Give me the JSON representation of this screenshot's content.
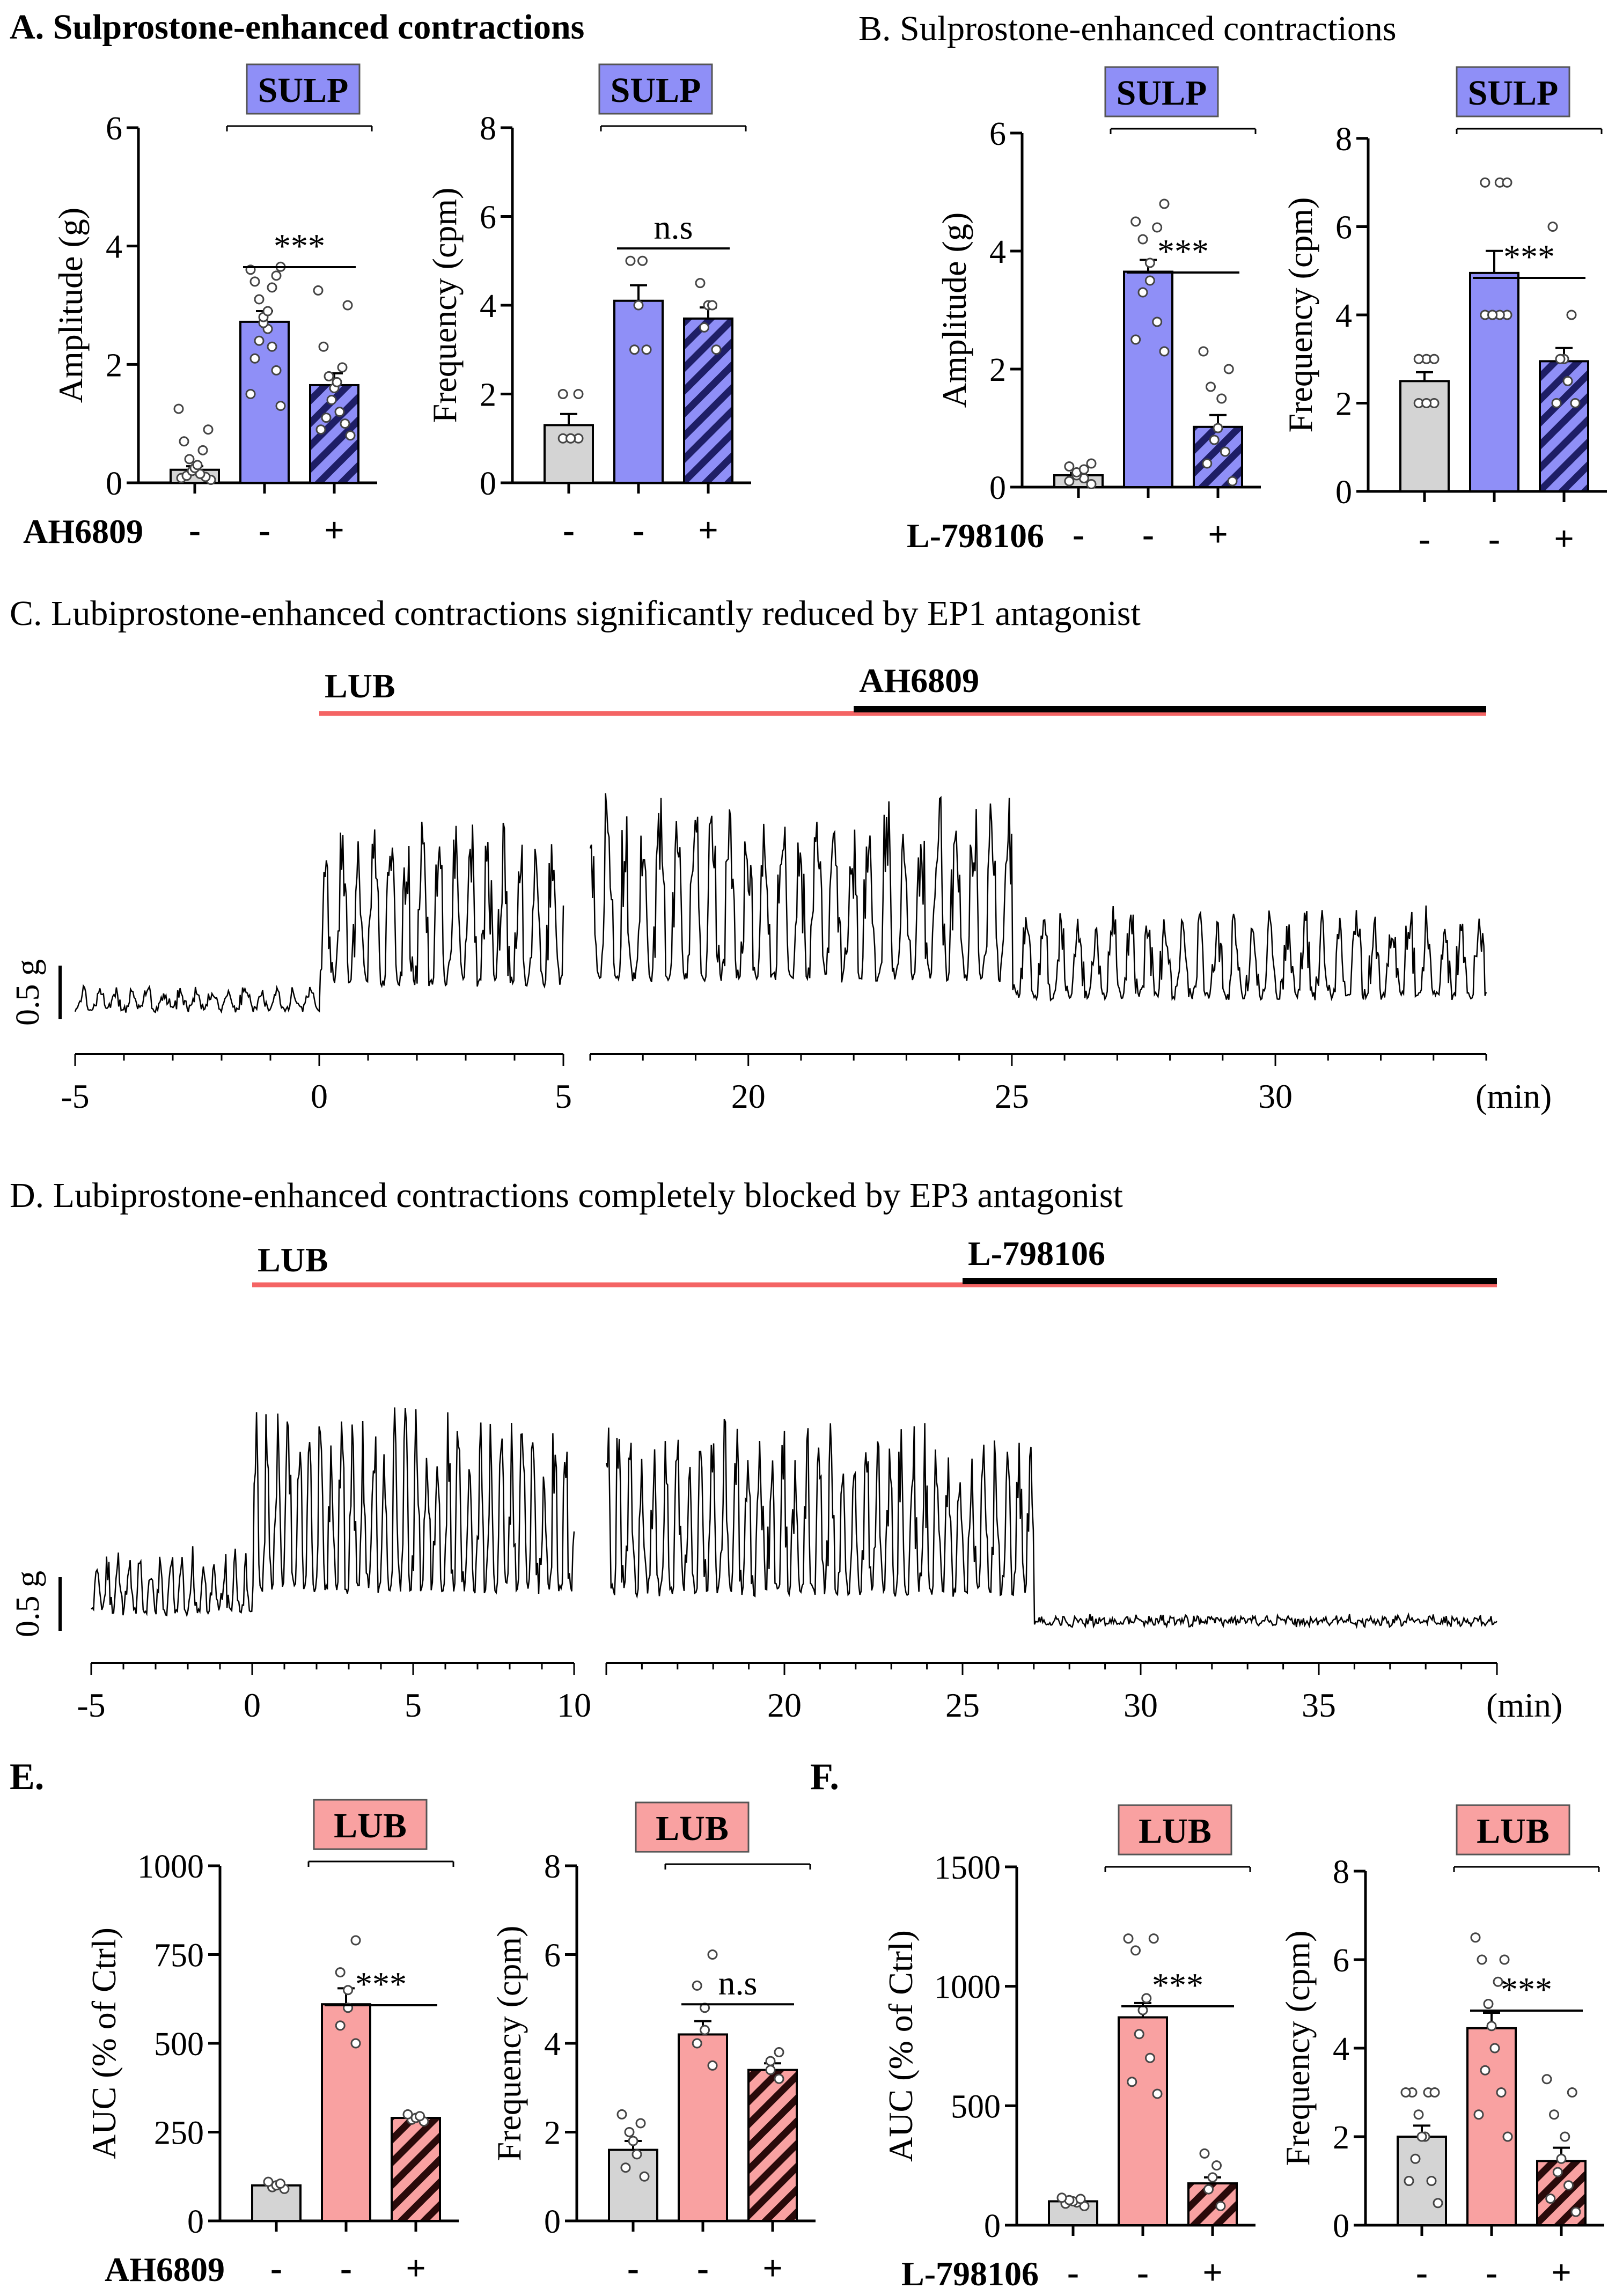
{
  "colors": {
    "control": "#d4d4d4",
    "sulp": "#8f8ff7",
    "sulp_dark": "#3a3a9a",
    "lub": "#f9a1a1",
    "lub_dark": "#e2565c",
    "lub_line": "#f46464",
    "trace": "#000000",
    "axis": "#000000"
  },
  "panel_titles": {
    "A": "A. Sulprostone-enhanced contractions",
    "B": "B. Sulprostone-enhanced contractions",
    "C": "C. Lubiprostone-enhanced contractions significantly reduced by EP1 antagonist",
    "D": "D. Lubiprostone-enhanced contractions completely blocked by EP3 antagonist",
    "E": "E.",
    "F": "F."
  },
  "chart_data": [
    {
      "id": "A1",
      "type": "bar",
      "ylabel": "Amplitude (g)",
      "ylim": [
        0,
        6
      ],
      "yticks": [
        "0",
        "2",
        "4",
        "6"
      ],
      "treatment": "SULP",
      "treatment_box": "sulp",
      "significance": "***",
      "drug_label": "AH6809",
      "drug_signs": [
        "-",
        "-",
        "+"
      ],
      "bars": [
        {
          "mean": 0.22,
          "sem": 0.06,
          "style": "control",
          "points": [
            0.05,
            0.08,
            0.1,
            0.12,
            0.15,
            0.2,
            0.25,
            0.3,
            0.4,
            0.55,
            0.7,
            0.9,
            1.25
          ]
        },
        {
          "mean": 2.72,
          "sem": 0.18,
          "style": "treat",
          "points": [
            1.3,
            1.5,
            1.9,
            2.1,
            2.3,
            2.4,
            2.6,
            2.7,
            2.8,
            2.9,
            3.1,
            3.3,
            3.4,
            3.5,
            3.6,
            3.65
          ]
        },
        {
          "mean": 1.65,
          "sem": 0.2,
          "style": "hatch",
          "points": [
            0.8,
            0.9,
            1.0,
            1.1,
            1.2,
            1.4,
            1.6,
            1.7,
            1.8,
            1.95,
            2.3,
            3.0,
            3.25
          ]
        }
      ]
    },
    {
      "id": "A2",
      "type": "bar",
      "ylabel": "Frequency (cpm)",
      "ylim": [
        0,
        8
      ],
      "yticks": [
        "0",
        "2",
        "4",
        "6",
        "8"
      ],
      "treatment": "SULP",
      "treatment_box": "sulp",
      "significance": "n.s",
      "drug_label": "",
      "drug_signs": [
        "-",
        "-",
        "+"
      ],
      "bars": [
        {
          "mean": 1.3,
          "sem": 0.25,
          "style": "control",
          "points": [
            1.0,
            1.0,
            1.0,
            1.0,
            2.0,
            2.0
          ]
        },
        {
          "mean": 4.1,
          "sem": 0.35,
          "style": "treat",
          "points": [
            3.0,
            3.0,
            4.0,
            5.0,
            5.0
          ]
        },
        {
          "mean": 3.7,
          "sem": 0.25,
          "style": "hatch",
          "points": [
            3.0,
            3.5,
            4.0,
            4.0,
            4.5
          ]
        }
      ]
    },
    {
      "id": "B1",
      "type": "bar",
      "ylabel": "Amplitude (g)",
      "ylim": [
        0,
        6
      ],
      "yticks": [
        "0",
        "2",
        "4",
        "6"
      ],
      "treatment": "SULP",
      "treatment_box": "sulp",
      "significance": "***",
      "drug_label": "L-798106",
      "drug_signs": [
        "-",
        "-",
        "+"
      ],
      "bars": [
        {
          "mean": 0.2,
          "sem": 0.04,
          "style": "control",
          "points": [
            0.05,
            0.1,
            0.15,
            0.2,
            0.25,
            0.3,
            0.35,
            0.4
          ]
        },
        {
          "mean": 3.65,
          "sem": 0.2,
          "style": "treat",
          "points": [
            2.3,
            2.5,
            2.8,
            3.3,
            3.5,
            3.8,
            4.2,
            4.4,
            4.5,
            4.8
          ]
        },
        {
          "mean": 1.02,
          "sem": 0.2,
          "style": "hatch",
          "points": [
            0.1,
            0.4,
            0.6,
            0.8,
            1.0,
            1.5,
            1.7,
            2.0,
            2.3
          ]
        }
      ]
    },
    {
      "id": "B2",
      "type": "bar",
      "ylabel": "Frequency (cpm)",
      "ylim": [
        0,
        8
      ],
      "yticks": [
        "0",
        "2",
        "4",
        "6",
        "8"
      ],
      "treatment": "SULP",
      "treatment_box": "sulp",
      "significance": "***",
      "drug_label": "",
      "drug_signs": [
        "-",
        "-",
        "+"
      ],
      "bars": [
        {
          "mean": 2.5,
          "sem": 0.2,
          "style": "control",
          "points": [
            2.0,
            2.0,
            2.0,
            3.0,
            3.0,
            3.0
          ]
        },
        {
          "mean": 4.95,
          "sem": 0.5,
          "style": "treat",
          "points": [
            4.0,
            4.0,
            4.0,
            4.0,
            4.0,
            7.0,
            7.0,
            7.0
          ]
        },
        {
          "mean": 2.95,
          "sem": 0.3,
          "style": "hatch",
          "points": [
            2.0,
            2.0,
            2.5,
            3.0,
            3.0,
            4.0,
            6.0
          ]
        }
      ]
    },
    {
      "id": "E1",
      "type": "bar",
      "ylabel": "AUC (% of Ctrl)",
      "ylim": [
        0,
        1000
      ],
      "yticks": [
        "0",
        "250",
        "500",
        "750",
        "1000"
      ],
      "treatment": "LUB",
      "treatment_box": "lub",
      "significance": "***",
      "drug_label": "AH6809",
      "drug_signs": [
        "-",
        "-",
        "+"
      ],
      "bars": [
        {
          "mean": 100,
          "sem": 5,
          "style": "control",
          "points": [
            90,
            95,
            100,
            105,
            110
          ]
        },
        {
          "mean": 610,
          "sem": 45,
          "style": "treat",
          "points": [
            500,
            550,
            600,
            650,
            700,
            790
          ]
        },
        {
          "mean": 290,
          "sem": 8,
          "style": "hatch",
          "points": [
            280,
            285,
            290,
            295,
            300
          ]
        }
      ]
    },
    {
      "id": "E2",
      "type": "bar",
      "ylabel": "Frequency (cpm)",
      "ylim": [
        0,
        8
      ],
      "yticks": [
        "0",
        "2",
        "4",
        "6",
        "8"
      ],
      "treatment": "LUB",
      "treatment_box": "lub",
      "significance": "n.s",
      "drug_label": "",
      "drug_signs": [
        "-",
        "-",
        "+"
      ],
      "bars": [
        {
          "mean": 1.6,
          "sem": 0.2,
          "style": "control",
          "points": [
            1.0,
            1.2,
            1.5,
            1.8,
            2.0,
            2.2,
            2.4
          ]
        },
        {
          "mean": 4.2,
          "sem": 0.3,
          "style": "treat",
          "points": [
            3.5,
            4.0,
            4.3,
            4.8,
            5.3,
            6.0
          ]
        },
        {
          "mean": 3.4,
          "sem": 0.15,
          "style": "hatch",
          "points": [
            3.2,
            3.4,
            3.6,
            3.8
          ]
        }
      ]
    },
    {
      "id": "F1",
      "type": "bar",
      "ylabel": "AUC (% of Ctrl)",
      "ylim": [
        0,
        1500
      ],
      "yticks": [
        "0",
        "500",
        "1000",
        "1500"
      ],
      "treatment": "LUB",
      "treatment_box": "lub",
      "significance": "***",
      "drug_label": "L-798106",
      "drug_signs": [
        "-",
        "-",
        "+"
      ],
      "bars": [
        {
          "mean": 100,
          "sem": 8,
          "style": "control",
          "points": [
            80,
            90,
            95,
            100,
            105,
            110,
            115
          ]
        },
        {
          "mean": 870,
          "sem": 60,
          "style": "treat",
          "points": [
            550,
            600,
            700,
            800,
            900,
            950,
            1150,
            1200,
            1200
          ]
        },
        {
          "mean": 175,
          "sem": 25,
          "style": "hatch",
          "points": [
            80,
            150,
            200,
            250,
            300
          ]
        }
      ]
    },
    {
      "id": "F2",
      "type": "bar",
      "ylabel": "Frequency (cpm)",
      "ylim": [
        0,
        8
      ],
      "yticks": [
        "0",
        "2",
        "4",
        "6",
        "8"
      ],
      "treatment": "LUB",
      "treatment_box": "lub",
      "significance": "***",
      "drug_label": "",
      "drug_signs": [
        "-",
        "-",
        "+"
      ],
      "bars": [
        {
          "mean": 2.0,
          "sem": 0.25,
          "style": "control",
          "points": [
            0.5,
            1.0,
            1.0,
            1.5,
            2.0,
            2.0,
            2.5,
            3.0,
            3.0,
            3.0,
            3.0
          ]
        },
        {
          "mean": 4.45,
          "sem": 0.35,
          "style": "treat",
          "points": [
            2.0,
            2.5,
            3.0,
            3.5,
            4.0,
            4.5,
            5.0,
            5.5,
            6.0,
            6.0,
            6.5
          ]
        },
        {
          "mean": 1.45,
          "sem": 0.3,
          "style": "hatch",
          "points": [
            0.3,
            0.6,
            0.9,
            1.2,
            1.5,
            2.0,
            2.5,
            3.0,
            3.3
          ]
        }
      ]
    },
    {
      "id": "C",
      "type": "line",
      "title": "C. Lubiprostone-enhanced contractions significantly reduced by EP1 antagonist",
      "scale_bar": "0.5 g",
      "unit": "(min)",
      "segments": [
        {
          "xlim": [
            -5,
            5
          ],
          "ticks": [
            "-5",
            "0",
            "5"
          ]
        },
        {
          "xlim": [
            17,
            34
          ],
          "ticks": [
            "20",
            "25",
            "30"
          ]
        }
      ],
      "drugs": [
        {
          "name": "LUB",
          "from": 0,
          "to": 34,
          "color": "lub_line"
        },
        {
          "name": "AH6809",
          "from": 22,
          "to": 34,
          "color": "trace"
        }
      ],
      "phases": [
        {
          "from": -5,
          "to": 0,
          "amplitude": 0.1
        },
        {
          "from": 0,
          "to": 5,
          "amplitude": 0.75
        },
        {
          "from": 17,
          "to": 25,
          "amplitude": 0.85
        },
        {
          "from": 25,
          "to": 34,
          "amplitude": 0.4
        }
      ]
    },
    {
      "id": "D",
      "type": "line",
      "title": "D. Lubiprostone-enhanced contractions completely blocked by EP3 antagonist",
      "scale_bar": "0.5 g",
      "unit": "(min)",
      "segments": [
        {
          "xlim": [
            -5,
            10
          ],
          "ticks": [
            "-5",
            "0",
            "5",
            "10"
          ]
        },
        {
          "xlim": [
            15,
            40
          ],
          "ticks": [
            "20",
            "25",
            "30",
            "35"
          ]
        }
      ],
      "drugs": [
        {
          "name": "LUB",
          "from": 0,
          "to": 40,
          "color": "lub_line"
        },
        {
          "name": "L-798106",
          "from": 25,
          "to": 40,
          "color": "trace"
        }
      ],
      "phases": [
        {
          "from": -5,
          "to": 0,
          "amplitude": 0.25
        },
        {
          "from": 0,
          "to": 10,
          "amplitude": 0.75
        },
        {
          "from": 15,
          "to": 27,
          "amplitude": 0.7
        },
        {
          "from": 27,
          "to": 40,
          "amplitude": 0.02
        }
      ]
    }
  ]
}
